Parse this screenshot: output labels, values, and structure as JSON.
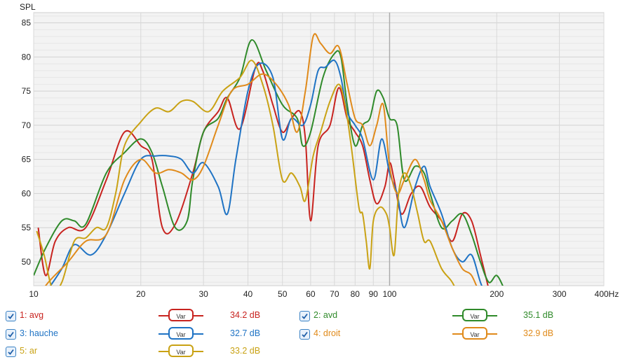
{
  "chart_data": {
    "type": "line",
    "ylabel": "SPL",
    "x_scale": "log",
    "xlim": [
      10,
      400
    ],
    "ylim": [
      46.5,
      86.5
    ],
    "x_ticks": [
      {
        "v": 10,
        "label": "10"
      },
      {
        "v": 20,
        "label": "20"
      },
      {
        "v": 30,
        "label": "30"
      },
      {
        "v": 40,
        "label": "40"
      },
      {
        "v": 50,
        "label": "50"
      },
      {
        "v": 60,
        "label": "60"
      },
      {
        "v": 70,
        "label": "70"
      },
      {
        "v": 80,
        "label": "80"
      },
      {
        "v": 90,
        "label": "90"
      },
      {
        "v": 100,
        "label": "100"
      },
      {
        "v": 200,
        "label": "200"
      },
      {
        "v": 300,
        "label": "300"
      },
      {
        "v": 400,
        "label": "400Hz"
      }
    ],
    "y_ticks": [
      50,
      55,
      60,
      65,
      70,
      75,
      80,
      85
    ],
    "series": [
      {
        "name": "1: avg",
        "color": "#c8231f",
        "value": "34.2 dB",
        "points": [
          [
            10.3,
            55
          ],
          [
            10.8,
            48
          ],
          [
            11.5,
            53
          ],
          [
            12.5,
            55
          ],
          [
            14,
            55
          ],
          [
            16,
            62
          ],
          [
            18,
            69
          ],
          [
            20,
            67
          ],
          [
            21.5,
            65
          ],
          [
            23,
            55
          ],
          [
            25,
            55.5
          ],
          [
            28,
            63
          ],
          [
            30,
            69
          ],
          [
            33,
            72
          ],
          [
            35,
            74
          ],
          [
            38,
            69.5
          ],
          [
            42,
            78.5
          ],
          [
            44,
            78
          ],
          [
            47,
            73
          ],
          [
            50,
            69
          ],
          [
            53,
            71
          ],
          [
            56,
            72
          ],
          [
            58,
            68
          ],
          [
            60,
            56
          ],
          [
            63,
            67
          ],
          [
            68,
            70
          ],
          [
            72,
            75.5
          ],
          [
            76,
            71
          ],
          [
            80,
            69
          ],
          [
            84,
            67
          ],
          [
            88,
            62
          ],
          [
            92,
            58.5
          ],
          [
            97,
            61
          ],
          [
            100,
            64.5
          ],
          [
            103,
            62
          ],
          [
            108,
            57
          ],
          [
            115,
            60
          ],
          [
            122,
            61
          ],
          [
            130,
            58
          ],
          [
            140,
            56
          ],
          [
            150,
            53
          ],
          [
            160,
            57
          ],
          [
            170,
            56
          ],
          [
            180,
            51
          ],
          [
            190,
            46
          ]
        ]
      },
      {
        "name": "2: avd",
        "color": "#2f8a2a",
        "value": "35.1 dB",
        "points": [
          [
            10,
            48
          ],
          [
            10.8,
            52
          ],
          [
            12,
            56
          ],
          [
            13,
            56
          ],
          [
            14,
            55.5
          ],
          [
            16,
            63
          ],
          [
            18,
            66
          ],
          [
            20,
            68
          ],
          [
            21.5,
            66
          ],
          [
            23,
            61
          ],
          [
            25,
            55
          ],
          [
            27,
            56
          ],
          [
            28,
            62
          ],
          [
            30,
            69
          ],
          [
            33,
            71
          ],
          [
            35,
            74
          ],
          [
            38,
            77
          ],
          [
            41,
            82.5
          ],
          [
            45,
            78
          ],
          [
            50,
            73
          ],
          [
            55,
            71
          ],
          [
            57,
            67
          ],
          [
            60,
            69
          ],
          [
            65,
            77
          ],
          [
            70,
            80.5
          ],
          [
            73,
            80
          ],
          [
            76,
            73
          ],
          [
            80,
            67
          ],
          [
            84,
            70
          ],
          [
            88,
            71
          ],
          [
            92,
            75
          ],
          [
            96,
            74
          ],
          [
            100,
            71
          ],
          [
            105,
            70
          ],
          [
            110,
            62
          ],
          [
            118,
            64
          ],
          [
            125,
            63
          ],
          [
            130,
            60
          ],
          [
            140,
            55
          ],
          [
            150,
            56
          ],
          [
            160,
            57
          ],
          [
            170,
            54
          ],
          [
            180,
            50
          ],
          [
            190,
            47
          ],
          [
            200,
            48
          ],
          [
            210,
            46
          ]
        ]
      },
      {
        "name": "3: hauche",
        "color": "#1f73c4",
        "value": "32.7 dB",
        "points": [
          [
            10.5,
            44
          ],
          [
            11,
            46
          ],
          [
            12,
            49
          ],
          [
            13,
            52.5
          ],
          [
            14.5,
            51
          ],
          [
            16,
            54
          ],
          [
            18,
            60
          ],
          [
            20,
            65
          ],
          [
            22,
            65.5
          ],
          [
            24,
            65.5
          ],
          [
            26,
            65
          ],
          [
            28,
            63
          ],
          [
            30,
            64.5
          ],
          [
            33,
            61
          ],
          [
            35,
            57
          ],
          [
            37,
            65
          ],
          [
            40,
            75
          ],
          [
            43,
            79
          ],
          [
            47,
            77
          ],
          [
            50,
            68
          ],
          [
            53,
            71
          ],
          [
            57,
            70
          ],
          [
            60,
            73
          ],
          [
            63,
            78
          ],
          [
            66,
            78.5
          ],
          [
            70,
            79.5
          ],
          [
            73,
            77
          ],
          [
            76,
            72
          ],
          [
            80,
            70
          ],
          [
            84,
            68
          ],
          [
            90,
            62
          ],
          [
            95,
            68
          ],
          [
            100,
            63
          ],
          [
            105,
            60
          ],
          [
            110,
            55
          ],
          [
            118,
            61
          ],
          [
            125,
            64
          ],
          [
            130,
            61
          ],
          [
            140,
            57
          ],
          [
            150,
            52
          ],
          [
            160,
            50
          ],
          [
            170,
            51
          ],
          [
            180,
            47
          ],
          [
            190,
            44
          ]
        ]
      },
      {
        "name": "4: droit",
        "color": "#e08a1a",
        "value": "32.9 dB",
        "points": [
          [
            10,
            44
          ],
          [
            11,
            47
          ],
          [
            12.5,
            50
          ],
          [
            14,
            53
          ],
          [
            16,
            54
          ],
          [
            18,
            62
          ],
          [
            20,
            65
          ],
          [
            22,
            63
          ],
          [
            24,
            63.5
          ],
          [
            26,
            63
          ],
          [
            28,
            62
          ],
          [
            30,
            64
          ],
          [
            33,
            70
          ],
          [
            36,
            75
          ],
          [
            40,
            76
          ],
          [
            44,
            77.5
          ],
          [
            48,
            76
          ],
          [
            52,
            73
          ],
          [
            55,
            69
          ],
          [
            58,
            75
          ],
          [
            61,
            83
          ],
          [
            64,
            82
          ],
          [
            68,
            80.5
          ],
          [
            72,
            81.5
          ],
          [
            76,
            76
          ],
          [
            80,
            71
          ],
          [
            84,
            70
          ],
          [
            88,
            67
          ],
          [
            92,
            70
          ],
          [
            96,
            73
          ],
          [
            100,
            64
          ],
          [
            105,
            60
          ],
          [
            110,
            62
          ],
          [
            118,
            65
          ],
          [
            125,
            62
          ],
          [
            130,
            59
          ],
          [
            140,
            56
          ],
          [
            150,
            52
          ],
          [
            160,
            49
          ],
          [
            170,
            48
          ],
          [
            180,
            45
          ]
        ]
      },
      {
        "name": "5: ar",
        "color": "#c9a214",
        "value": "33.2 dB",
        "points": [
          [
            10.2,
            54.5
          ],
          [
            10.7,
            51
          ],
          [
            11.3,
            46
          ],
          [
            12,
            47
          ],
          [
            13,
            53
          ],
          [
            14,
            53.5
          ],
          [
            15,
            55
          ],
          [
            16,
            55
          ],
          [
            17,
            60
          ],
          [
            18,
            67
          ],
          [
            20,
            70.5
          ],
          [
            22,
            72.5
          ],
          [
            24,
            72
          ],
          [
            26,
            73.5
          ],
          [
            28,
            73.5
          ],
          [
            31,
            72
          ],
          [
            34,
            75
          ],
          [
            38,
            77
          ],
          [
            41,
            79.5
          ],
          [
            44,
            76
          ],
          [
            47,
            70
          ],
          [
            50,
            62
          ],
          [
            53,
            63
          ],
          [
            56,
            61
          ],
          [
            58,
            59
          ],
          [
            61,
            65.5
          ],
          [
            64,
            69
          ],
          [
            68,
            73.5
          ],
          [
            72,
            76
          ],
          [
            75,
            73
          ],
          [
            78,
            67
          ],
          [
            82,
            58
          ],
          [
            84,
            57
          ],
          [
            86,
            53
          ],
          [
            88,
            49
          ],
          [
            90,
            56
          ],
          [
            94,
            58
          ],
          [
            98,
            57
          ],
          [
            100,
            55
          ],
          [
            103,
            51
          ],
          [
            106,
            60
          ],
          [
            110,
            63
          ],
          [
            115,
            61
          ],
          [
            120,
            57
          ],
          [
            125,
            53
          ],
          [
            130,
            53
          ],
          [
            140,
            49
          ],
          [
            150,
            47
          ],
          [
            160,
            44
          ]
        ]
      }
    ]
  },
  "legend": [
    {
      "label": "1: avg",
      "var": "Var",
      "value": "34.2 dB",
      "color": "#c8231f"
    },
    {
      "label": "2: avd",
      "var": "Var",
      "value": "35.1 dB",
      "color": "#2f8a2a"
    },
    {
      "label": "3: hauche",
      "var": "Var",
      "value": "32.7 dB",
      "color": "#1f73c4"
    },
    {
      "label": "4: droit",
      "var": "Var",
      "value": "32.9 dB",
      "color": "#e08a1a"
    },
    {
      "label": "5: ar",
      "var": "Var",
      "value": "33.2 dB",
      "color": "#c9a214"
    }
  ]
}
